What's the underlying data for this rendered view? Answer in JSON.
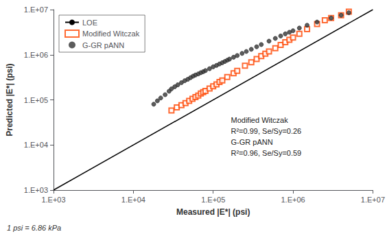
{
  "chart_data": {
    "type": "scatter",
    "xlabel": "Measured |E*| (psi)",
    "ylabel": "Predicted |E*| (psi)",
    "annotations": [
      "Modified Witczak",
      "R²=0.99, Se/Sy=0.26",
      "G-GR pANN",
      "R²=0.96, Se/Sy=0.59"
    ],
    "note": "1 psi = 6.86 kPa",
    "log": true,
    "grid": false,
    "legend": "upper left",
    "xlim": [
      1000,
      10000000
    ],
    "ylim": [
      1000,
      10000000
    ],
    "xticks": [
      {
        "value": 1000,
        "label": "1.E+03"
      },
      {
        "value": 10000,
        "label": "1.E+04"
      },
      {
        "value": 100000,
        "label": "1.E+05"
      },
      {
        "value": 1000000,
        "label": "1.E+06"
      },
      {
        "value": 10000000,
        "label": "1.E+07"
      }
    ],
    "yticks": [
      {
        "value": 1000,
        "label": "1.E+03"
      },
      {
        "value": 10000,
        "label": "1.E+04"
      },
      {
        "value": 100000,
        "label": "1.E+05"
      },
      {
        "value": 1000000,
        "label": "1.E+06"
      },
      {
        "value": 10000000,
        "label": "1.E+07"
      }
    ],
    "series": [
      {
        "name": "LOE",
        "type": "line",
        "color": "#000000",
        "line_style": "solid",
        "x": [
          1000,
          10000000
        ],
        "values": [
          1000,
          10000000
        ]
      },
      {
        "name": "Modified Witczak",
        "type": "scatter",
        "color": "#FF4500",
        "marker": "square",
        "x": [
          30000,
          35000,
          40000,
          45000,
          50000,
          55000,
          60000,
          65000,
          70000,
          75000,
          80000,
          90000,
          100000,
          110000,
          120000,
          130000,
          150000,
          180000,
          200000,
          250000,
          300000,
          350000,
          400000,
          450000,
          500000,
          600000,
          700000,
          800000,
          900000,
          1000000,
          1200000,
          1500000,
          2000000,
          2500000,
          3000000,
          4000000,
          5000000
        ],
        "values": [
          58000,
          68000,
          76000,
          85000,
          95000,
          105000,
          115000,
          125000,
          138000,
          148000,
          158000,
          178000,
          200000,
          220000,
          248000,
          270000,
          320000,
          390000,
          440000,
          570000,
          680000,
          800000,
          930000,
          1050000,
          1180000,
          1400000,
          1650000,
          1900000,
          2150000,
          2400000,
          2900000,
          3700000,
          4800000,
          5800000,
          6500000,
          7500000,
          9000000
        ]
      },
      {
        "name": "G-GR pANN",
        "type": "scatter",
        "color": "#333333",
        "marker": "circle",
        "x": [
          18000,
          20000,
          22000,
          25000,
          28000,
          30000,
          33000,
          36000,
          40000,
          44000,
          48000,
          52000,
          56000,
          60000,
          65000,
          70000,
          75000,
          80000,
          90000,
          100000,
          110000,
          120000,
          130000,
          140000,
          150000,
          160000,
          180000,
          200000,
          230000,
          260000,
          300000,
          350000,
          400000,
          500000,
          600000,
          700000,
          800000,
          900000,
          1000000,
          1200000,
          1500000,
          2000000,
          3000000,
          4000000,
          5000000
        ],
        "values": [
          80000,
          95000,
          110000,
          130000,
          155000,
          175000,
          195000,
          215000,
          240000,
          265000,
          285000,
          310000,
          335000,
          355000,
          375000,
          400000,
          420000,
          445000,
          490000,
          540000,
          580000,
          625000,
          665000,
          710000,
          755000,
          800000,
          880000,
          960000,
          1070000,
          1180000,
          1320000,
          1500000,
          1680000,
          2000000,
          2300000,
          2600000,
          2900000,
          3150000,
          3400000,
          3900000,
          4500000,
          5300000,
          6500000,
          7500000,
          8500000
        ]
      }
    ]
  }
}
